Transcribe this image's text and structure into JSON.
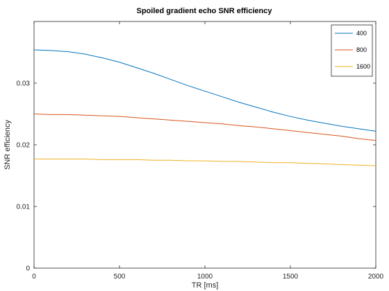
{
  "chart_data": {
    "type": "line",
    "title": "Spoiled gradient echo SNR efficiency",
    "xlabel": "TR [ms]",
    "ylabel": "SNR efficiency",
    "xlim": [
      0,
      2000
    ],
    "ylim": [
      0,
      0.04
    ],
    "x_ticks": [
      "0",
      "500",
      "1000",
      "1500",
      "2000"
    ],
    "y_ticks": [
      "0",
      "0.01",
      "0.02",
      "0.03"
    ],
    "legend_position": "top-right",
    "grid": false,
    "x": [
      0,
      100,
      200,
      300,
      400,
      500,
      600,
      700,
      800,
      900,
      1000,
      1100,
      1200,
      1300,
      1400,
      1500,
      1600,
      1700,
      1800,
      1900,
      2000
    ],
    "series": [
      {
        "name": "400",
        "color": "#0072bd",
        "values": [
          0.0354,
          0.0353,
          0.0351,
          0.0347,
          0.0341,
          0.0334,
          0.0325,
          0.0316,
          0.0306,
          0.0296,
          0.0287,
          0.0278,
          0.0269,
          0.0261,
          0.0253,
          0.0246,
          0.024,
          0.0235,
          0.023,
          0.0226,
          0.0222
        ]
      },
      {
        "name": "800",
        "color": "#d95319",
        "values": [
          0.025,
          0.0249,
          0.0249,
          0.0248,
          0.0247,
          0.0246,
          0.0244,
          0.0242,
          0.024,
          0.0238,
          0.0236,
          0.0234,
          0.0231,
          0.0229,
          0.0226,
          0.0223,
          0.022,
          0.0217,
          0.0214,
          0.021,
          0.0207
        ]
      },
      {
        "name": "1600",
        "color": "#edb120",
        "values": [
          0.0177,
          0.0177,
          0.0177,
          0.0177,
          0.0176,
          0.0176,
          0.0176,
          0.0175,
          0.0175,
          0.0174,
          0.0174,
          0.0173,
          0.0173,
          0.0172,
          0.0171,
          0.0171,
          0.017,
          0.0169,
          0.0168,
          0.0167,
          0.0166
        ]
      }
    ]
  }
}
